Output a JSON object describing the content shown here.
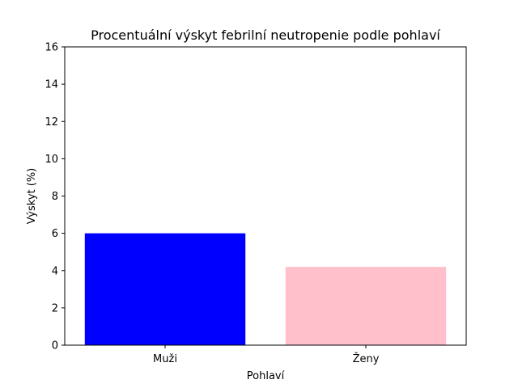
{
  "chart_data": {
    "type": "bar",
    "title": "Procentuální výskyt febrilní neutropenie podle pohlaví",
    "xlabel": "Pohlaví",
    "ylabel": "Výskyt (%)",
    "categories": [
      "Muži",
      "Ženy"
    ],
    "values": [
      6.0,
      4.2
    ],
    "colors": [
      "#0000ff",
      "#ffc0cb"
    ],
    "ylim": [
      0,
      16
    ],
    "yticks": [
      "0",
      "2",
      "4",
      "6",
      "8",
      "10",
      "12",
      "14",
      "16"
    ],
    "grid": false,
    "legend": "none"
  }
}
